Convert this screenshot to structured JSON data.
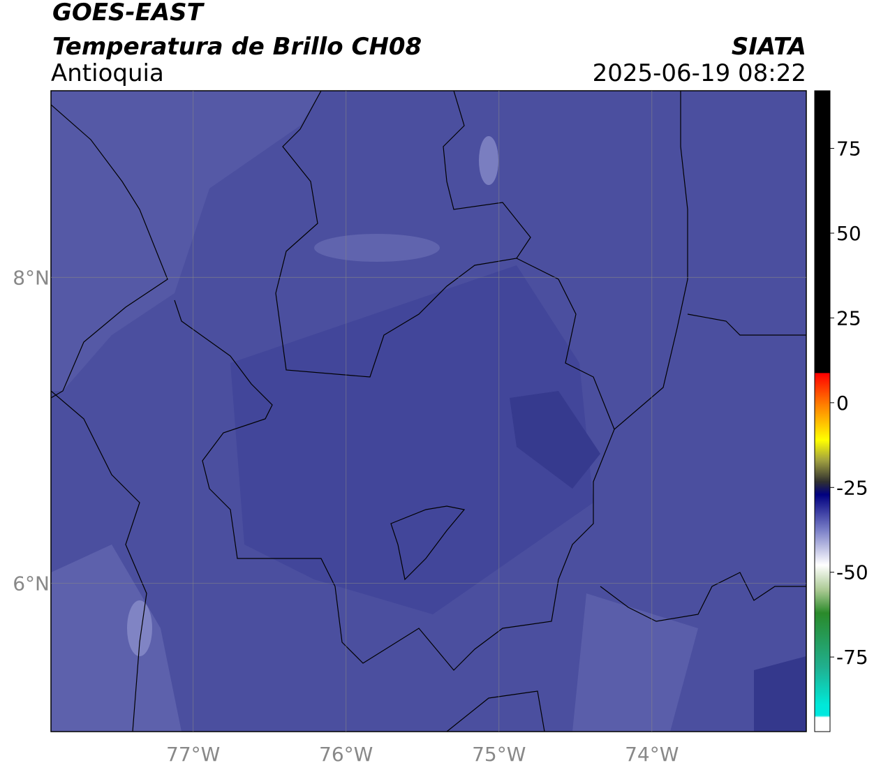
{
  "header": {
    "title": "GOES-EAST",
    "subtitle": "Temperatura de Brillo CH08",
    "region": "Antioquia",
    "source": "SIATA",
    "datetime": "2025-06-19 08:22"
  },
  "map": {
    "lonlim": [
      -77.93,
      -72.99
    ],
    "latlim": [
      5.03,
      9.22
    ],
    "lat_ticks": [
      {
        "value": 8,
        "label": "8°N"
      },
      {
        "value": 6,
        "label": "6°N"
      }
    ],
    "lon_ticks": [
      {
        "value": -77,
        "label": "77°W"
      },
      {
        "value": -76,
        "label": "76°W"
      },
      {
        "value": -75,
        "label": "75°W"
      },
      {
        "value": -74,
        "label": "74°W"
      }
    ]
  },
  "colorbar": {
    "lim": [
      -97,
      92
    ],
    "ticks": [
      75,
      50,
      25,
      0,
      -25,
      -50,
      -75
    ]
  }
}
